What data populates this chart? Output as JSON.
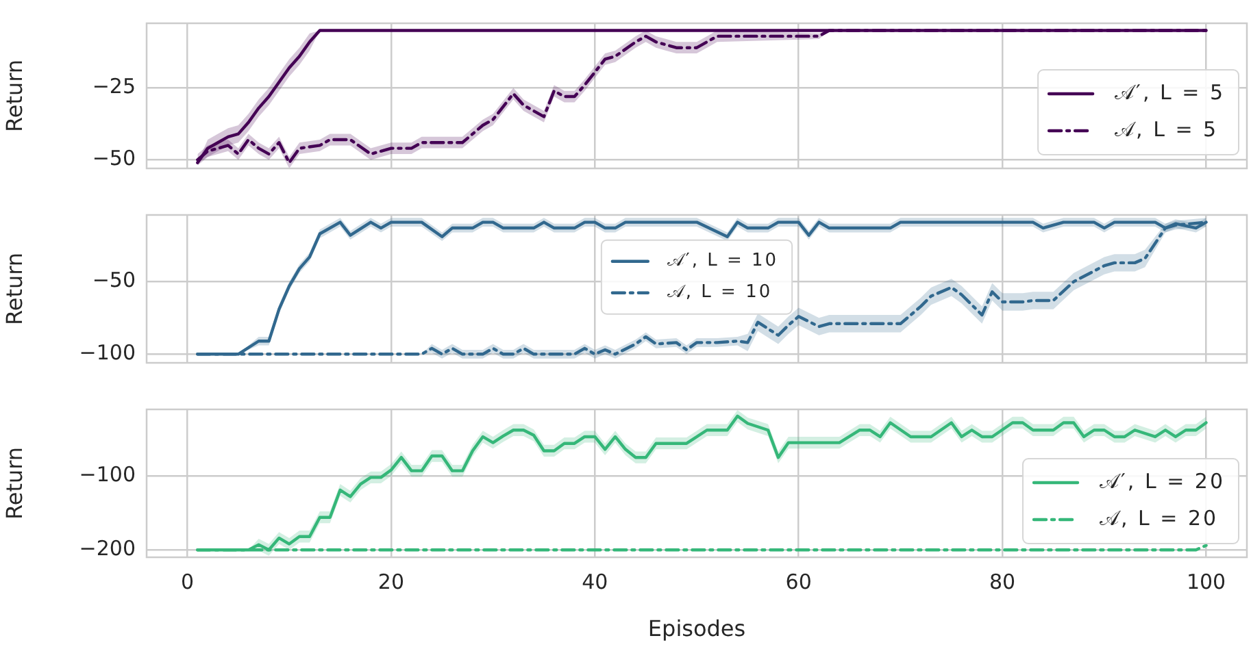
{
  "chart_data": [
    {
      "type": "line",
      "ylabel": "Return",
      "xlim": [
        -4,
        104
      ],
      "xticks": [
        0,
        20,
        40,
        60,
        80,
        100
      ],
      "ylim": [
        -53,
        -2.5
      ],
      "yticks": [
        -50,
        -25
      ],
      "grid": true,
      "legend": "bottom right",
      "tick_labels": "y",
      "series": [
        {
          "name": "𝒜′, L = 5",
          "color": "#440154",
          "line_style": "solid",
          "x": [
            1,
            2,
            3,
            4,
            5,
            6,
            7,
            8,
            9,
            10,
            11,
            12,
            13,
            100
          ],
          "values": [
            -51,
            -46,
            -44,
            -42,
            -41,
            -37,
            -32,
            -28,
            -23,
            -18,
            -14,
            -9,
            -5,
            -5
          ],
          "lower": [
            -51,
            -49,
            -47,
            -45,
            -44,
            -40,
            -35,
            -31,
            -26,
            -21,
            -17,
            -12,
            -5,
            -5
          ],
          "upper": [
            -51,
            -43,
            -41,
            -39,
            -38,
            -34,
            -29,
            -25,
            -20,
            -15,
            -11,
            -6,
            -5,
            -5
          ]
        },
        {
          "name": "𝒜, L = 5",
          "color": "#440154",
          "line_style": "dashed",
          "x": [
            1,
            2,
            3,
            4,
            5,
            6,
            7,
            8,
            9,
            10,
            11,
            13,
            14,
            16,
            18,
            20,
            22,
            23,
            27,
            29,
            30,
            32,
            33,
            35,
            36,
            37,
            38,
            39,
            41,
            42,
            44,
            45,
            46,
            47,
            48,
            50,
            51,
            52,
            62,
            63,
            100
          ],
          "values": [
            -50,
            -47,
            -46,
            -45,
            -48,
            -43,
            -46,
            -48,
            -44,
            -51,
            -46,
            -45,
            -43,
            -43,
            -48,
            -46,
            -46,
            -44,
            -44,
            -38,
            -36,
            -27,
            -31,
            -35,
            -26,
            -28,
            -28,
            -24,
            -15,
            -14,
            -9,
            -7,
            -9,
            -10,
            -11,
            -11,
            -9,
            -7,
            -7,
            -5,
            -5
          ],
          "lower": [
            -52,
            -49,
            -48,
            -47,
            -50,
            -45,
            -48,
            -50,
            -46,
            -53,
            -48,
            -47,
            -45,
            -45,
            -50,
            -48,
            -48,
            -46,
            -46,
            -40,
            -38,
            -29,
            -33,
            -37,
            -28,
            -30,
            -30,
            -26,
            -17,
            -16,
            -11,
            -9,
            -11,
            -12,
            -13,
            -13,
            -11,
            -9,
            -8,
            -5,
            -5
          ],
          "upper": [
            -48,
            -45,
            -44,
            -43,
            -46,
            -41,
            -44,
            -46,
            -42,
            -49,
            -44,
            -43,
            -41,
            -41,
            -46,
            -44,
            -44,
            -42,
            -42,
            -36,
            -34,
            -25,
            -29,
            -33,
            -24,
            -26,
            -26,
            -22,
            -13,
            -12,
            -7,
            -5,
            -7,
            -8,
            -9,
            -9,
            -7,
            -5,
            -6,
            -5,
            -5
          ]
        }
      ]
    },
    {
      "type": "line",
      "ylabel": "Return",
      "xlim": [
        -4,
        104
      ],
      "xticks": [
        0,
        20,
        40,
        60,
        80,
        100
      ],
      "ylim": [
        -106,
        -4
      ],
      "yticks": [
        -100,
        -50
      ],
      "grid": true,
      "legend": "center",
      "tick_labels": "y",
      "series": [
        {
          "name": "𝒜′, L = 10",
          "color": "#31688e",
          "line_style": "solid",
          "x": [
            1,
            5,
            7,
            8,
            9,
            10,
            11,
            12,
            13,
            15,
            16,
            18,
            19,
            20,
            23,
            25,
            26,
            28,
            29,
            30,
            31,
            34,
            35,
            36,
            38,
            39,
            40,
            41,
            42,
            43,
            50,
            53,
            54,
            55,
            57,
            58,
            60,
            61,
            62,
            63,
            69,
            70,
            83,
            84,
            86,
            89,
            90,
            91,
            95,
            96,
            97,
            99,
            100
          ],
          "values": [
            -100,
            -100,
            -91,
            -91,
            -69,
            -53,
            -41,
            -33,
            -17,
            -9,
            -18,
            -9,
            -13,
            -9,
            -9,
            -19,
            -13,
            -13,
            -9,
            -9,
            -13,
            -13,
            -9,
            -13,
            -13,
            -9,
            -9,
            -13,
            -13,
            -9,
            -9,
            -19,
            -9,
            -13,
            -13,
            -9,
            -9,
            -18,
            -9,
            -13,
            -13,
            -9,
            -9,
            -13,
            -9,
            -9,
            -13,
            -9,
            -9,
            -13,
            -10,
            -13,
            -9
          ],
          "lower": [
            -100,
            -100,
            -94,
            -94,
            -72,
            -56,
            -44,
            -36,
            -20,
            -12,
            -21,
            -12,
            -16,
            -12,
            -12,
            -22,
            -16,
            -16,
            -12,
            -12,
            -16,
            -16,
            -12,
            -16,
            -16,
            -12,
            -12,
            -16,
            -16,
            -12,
            -12,
            -22,
            -12,
            -16,
            -16,
            -12,
            -12,
            -21,
            -12,
            -16,
            -16,
            -12,
            -12,
            -16,
            -12,
            -12,
            -16,
            -12,
            -12,
            -16,
            -13,
            -16,
            -12
          ],
          "upper": [
            -100,
            -100,
            -88,
            -88,
            -66,
            -50,
            -38,
            -30,
            -14,
            -6,
            -15,
            -6,
            -10,
            -6,
            -6,
            -16,
            -10,
            -10,
            -6,
            -6,
            -10,
            -10,
            -6,
            -10,
            -10,
            -6,
            -6,
            -10,
            -10,
            -6,
            -6,
            -16,
            -6,
            -10,
            -10,
            -6,
            -6,
            -15,
            -6,
            -10,
            -10,
            -6,
            -6,
            -10,
            -6,
            -6,
            -10,
            -6,
            -6,
            -10,
            -7,
            -10,
            -6
          ]
        },
        {
          "name": "𝒜, L = 10",
          "color": "#31688e",
          "line_style": "dashed",
          "x": [
            1,
            23,
            24,
            25,
            26,
            27,
            29,
            30,
            31,
            32,
            33,
            34,
            38,
            39,
            40,
            41,
            42,
            44,
            45,
            46,
            48,
            49,
            50,
            52,
            54,
            55,
            56,
            58,
            59,
            60,
            62,
            63,
            70,
            72,
            73,
            75,
            76,
            78,
            79,
            80,
            82,
            83,
            85,
            87,
            90,
            91,
            93,
            94,
            96,
            97,
            100
          ],
          "values": [
            -100,
            -100,
            -96,
            -100,
            -96,
            -100,
            -100,
            -96,
            -100,
            -100,
            -96,
            -100,
            -100,
            -96,
            -100,
            -97,
            -100,
            -93,
            -88,
            -93,
            -92,
            -97,
            -92,
            -92,
            -91,
            -92,
            -78,
            -87,
            -80,
            -74,
            -81,
            -79,
            -79,
            -67,
            -60,
            -54,
            -59,
            -73,
            -57,
            -64,
            -64,
            -63,
            -63,
            -50,
            -39,
            -37,
            -37,
            -34,
            -13,
            -11,
            -9
          ],
          "lower": [
            -100,
            -100,
            -99,
            -103,
            -99,
            -103,
            -103,
            -99,
            -103,
            -103,
            -99,
            -103,
            -103,
            -99,
            -103,
            -100,
            -103,
            -96,
            -91,
            -96,
            -95,
            -100,
            -95,
            -95,
            -94,
            -98,
            -84,
            -93,
            -86,
            -80,
            -87,
            -85,
            -85,
            -73,
            -66,
            -60,
            -65,
            -79,
            -63,
            -70,
            -70,
            -69,
            -69,
            -56,
            -45,
            -43,
            -43,
            -40,
            -16,
            -14,
            -12
          ],
          "upper": [
            -100,
            -100,
            -93,
            -97,
            -93,
            -97,
            -97,
            -93,
            -97,
            -97,
            -93,
            -97,
            -97,
            -93,
            -97,
            -94,
            -97,
            -90,
            -85,
            -90,
            -89,
            -94,
            -89,
            -89,
            -88,
            -86,
            -72,
            -81,
            -74,
            -68,
            -75,
            -73,
            -73,
            -61,
            -54,
            -48,
            -53,
            -67,
            -51,
            -58,
            -58,
            -57,
            -57,
            -44,
            -33,
            -31,
            -31,
            -28,
            -10,
            -8,
            -6
          ]
        }
      ]
    },
    {
      "type": "line",
      "xlabel": "Episodes",
      "ylabel": "Return",
      "xlim": [
        -4,
        104
      ],
      "xticks": [
        0,
        20,
        40,
        60,
        80,
        100
      ],
      "ylim": [
        -210,
        -10
      ],
      "yticks": [
        -200,
        -100
      ],
      "grid": true,
      "legend": "bottom right",
      "series": [
        {
          "name": "𝒜′, L = 20",
          "color": "#35b779",
          "line_style": "solid",
          "x": [
            1,
            6,
            7,
            8,
            9,
            10,
            11,
            12,
            13,
            14,
            15,
            16,
            17,
            18,
            19,
            20,
            21,
            22,
            23,
            24,
            25,
            26,
            27,
            28,
            29,
            30,
            31,
            32,
            33,
            34,
            35,
            36,
            37,
            38,
            39,
            40,
            41,
            42,
            43,
            44,
            45,
            46,
            49,
            51,
            53,
            54,
            55,
            57,
            58,
            59,
            64,
            66,
            67,
            68,
            69,
            71,
            73,
            75,
            76,
            77,
            78,
            79,
            81,
            82,
            83,
            85,
            86,
            87,
            88,
            89,
            90,
            91,
            92,
            93,
            95,
            96,
            97,
            98,
            99,
            100
          ],
          "values": [
            -200,
            -200,
            -193,
            -200,
            -184,
            -192,
            -182,
            -182,
            -156,
            -156,
            -119,
            -128,
            -111,
            -102,
            -102,
            -92,
            -75,
            -93,
            -93,
            -73,
            -73,
            -93,
            -93,
            -66,
            -47,
            -55,
            -46,
            -38,
            -38,
            -45,
            -66,
            -66,
            -56,
            -56,
            -47,
            -47,
            -64,
            -47,
            -64,
            -75,
            -75,
            -56,
            -56,
            -38,
            -38,
            -19,
            -29,
            -38,
            -75,
            -55,
            -55,
            -38,
            -38,
            -47,
            -28,
            -47,
            -47,
            -28,
            -47,
            -38,
            -47,
            -47,
            -28,
            -28,
            -38,
            -38,
            -28,
            -28,
            -47,
            -38,
            -38,
            -47,
            -47,
            -38,
            -47,
            -38,
            -47,
            -38,
            -38,
            -28
          ],
          "lower": [
            -200,
            -200,
            -201,
            -208,
            -192,
            -200,
            -190,
            -190,
            -164,
            -164,
            -127,
            -136,
            -119,
            -110,
            -110,
            -100,
            -83,
            -101,
            -101,
            -81,
            -81,
            -101,
            -101,
            -74,
            -55,
            -63,
            -54,
            -46,
            -46,
            -53,
            -74,
            -74,
            -64,
            -64,
            -55,
            -55,
            -72,
            -55,
            -72,
            -83,
            -83,
            -64,
            -64,
            -46,
            -46,
            -27,
            -37,
            -46,
            -83,
            -63,
            -63,
            -46,
            -46,
            -55,
            -36,
            -55,
            -55,
            -36,
            -55,
            -46,
            -55,
            -55,
            -36,
            -36,
            -46,
            -46,
            -36,
            -36,
            -55,
            -46,
            -46,
            -55,
            -55,
            -46,
            -55,
            -46,
            -55,
            -46,
            -46,
            -36
          ],
          "upper": [
            -200,
            -200,
            -185,
            -192,
            -176,
            -184,
            -174,
            -174,
            -148,
            -148,
            -111,
            -120,
            -103,
            -94,
            -94,
            -84,
            -67,
            -85,
            -85,
            -65,
            -65,
            -85,
            -85,
            -58,
            -39,
            -47,
            -38,
            -30,
            -30,
            -37,
            -58,
            -58,
            -48,
            -48,
            -39,
            -39,
            -56,
            -39,
            -56,
            -67,
            -67,
            -48,
            -48,
            -30,
            -30,
            -11,
            -21,
            -30,
            -67,
            -47,
            -47,
            -30,
            -30,
            -39,
            -20,
            -39,
            -39,
            -20,
            -39,
            -30,
            -39,
            -39,
            -20,
            -20,
            -30,
            -30,
            -20,
            -20,
            -39,
            -30,
            -30,
            -39,
            -39,
            -30,
            -39,
            -30,
            -39,
            -30,
            -30,
            -20
          ]
        },
        {
          "name": "𝒜, L = 20",
          "color": "#35b779",
          "line_style": "dashed",
          "x": [
            1,
            99,
            100
          ],
          "values": [
            -200,
            -200,
            -194
          ]
        }
      ]
    }
  ]
}
